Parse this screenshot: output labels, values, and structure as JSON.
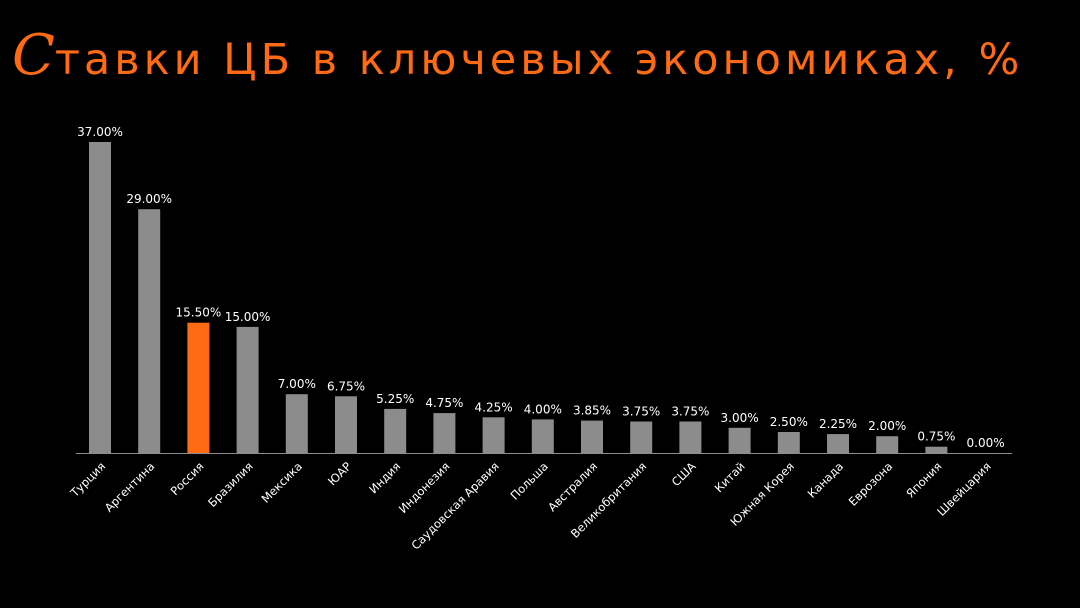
{
  "title": {
    "initial": "С",
    "rest": "тавки ЦБ в ключевых экономиках, %"
  },
  "colors": {
    "background": "#000000",
    "bar": "#8c8c8c",
    "highlight": "#ff6a13",
    "title": "#ff6a13",
    "axis": "#8c8c8c",
    "text": "#ffffff"
  },
  "chart_data": {
    "type": "bar",
    "title": "Ставки ЦБ в ключевых экономиках, %",
    "xlabel": "",
    "ylabel": "",
    "ylim": [
      0,
      37
    ],
    "grid": false,
    "legend": "none",
    "highlight_category": "Россия",
    "categories": [
      "Турция",
      "Аргентина",
      "Россия",
      "Бразилия",
      "Мексика",
      "ЮАР",
      "Индия",
      "Индонезия",
      "Саудовская Аравия",
      "Польша",
      "Австралия",
      "Великобритания",
      "США",
      "Китай",
      "Южная Корея",
      "Канада",
      "Еврозона",
      "Япония",
      "Швейцария"
    ],
    "values": [
      37.0,
      29.0,
      15.5,
      15.0,
      7.0,
      6.75,
      5.25,
      4.75,
      4.25,
      4.0,
      3.85,
      3.75,
      3.75,
      3.0,
      2.5,
      2.25,
      2.0,
      0.75,
      0.0
    ],
    "value_labels": [
      "37.00%",
      "29.00%",
      "15.50%",
      "15.00%",
      "7.00%",
      "6.75%",
      "5.25%",
      "4.75%",
      "4.25%",
      "4.00%",
      "3.85%",
      "3.75%",
      "3.75%",
      "3.00%",
      "2.50%",
      "2.25%",
      "2.00%",
      "0.75%",
      "0.00%"
    ]
  }
}
